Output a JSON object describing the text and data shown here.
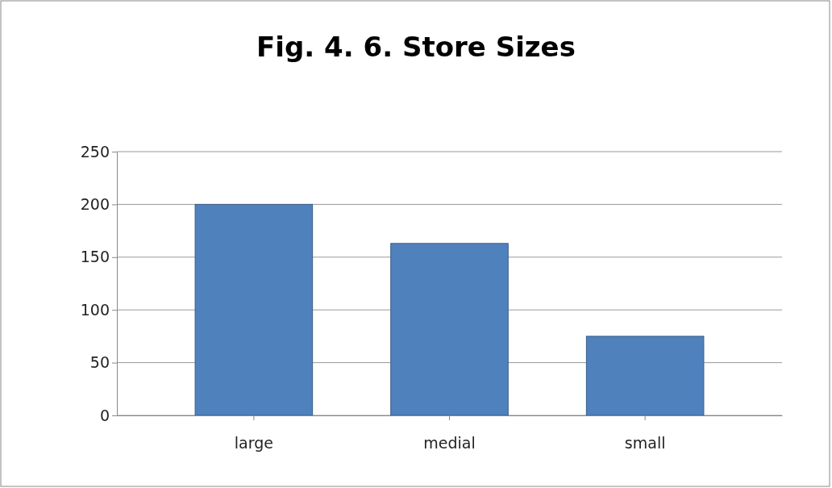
{
  "chart_data": {
    "type": "bar",
    "title": "Fig. 4. 6. Store Sizes",
    "categories": [
      "large",
      "medial",
      "small"
    ],
    "values": [
      200,
      163,
      75
    ],
    "color": "#4f81bd",
    "ylim": [
      0,
      250
    ],
    "yticks": [
      0,
      50,
      100,
      150,
      200,
      250
    ],
    "grid": "y"
  }
}
